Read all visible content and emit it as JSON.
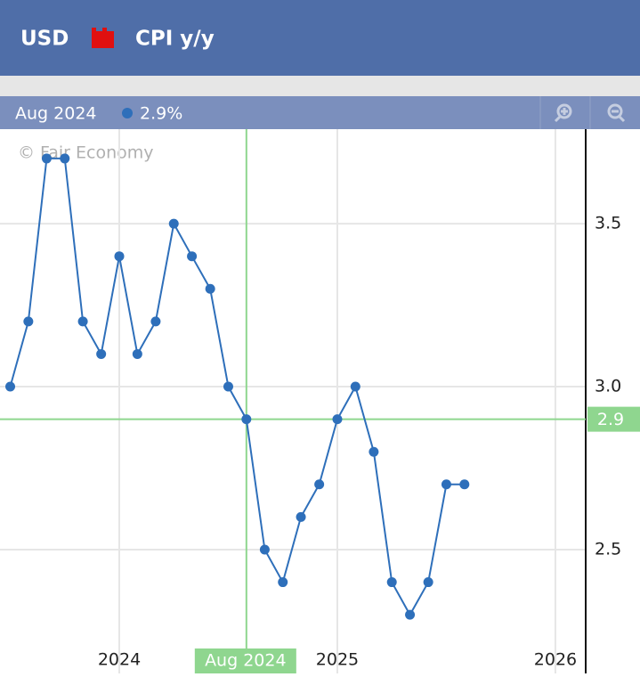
{
  "header": {
    "currency": "USD",
    "indicator": "CPI y/y"
  },
  "watermark": "© Fair Economy",
  "chart_data": {
    "type": "line",
    "x": [
      2023.5,
      2023.583,
      2023.667,
      2023.75,
      2023.833,
      2023.917,
      2024,
      2024.083,
      2024.167,
      2024.25,
      2024.333,
      2024.417,
      2024.5,
      2024.583,
      2024.667,
      2024.75,
      2024.833,
      2024.917,
      2025,
      2025.083,
      2025.167,
      2025.25,
      2025.333,
      2025.417,
      2025.5,
      2025.583
    ],
    "values": [
      3.0,
      3.2,
      3.7,
      3.7,
      3.2,
      3.1,
      3.4,
      3.1,
      3.2,
      3.5,
      3.4,
      3.3,
      3.0,
      2.9,
      2.5,
      2.4,
      2.6,
      2.7,
      2.9,
      3.0,
      2.8,
      2.4,
      2.3,
      2.4,
      2.7,
      2.7
    ],
    "color": "#2e6fba",
    "xlim": [
      2023.453,
      2026.139
    ],
    "xticks": [
      2024,
      2025,
      2026
    ],
    "ylim": [
      2.12,
      3.79
    ],
    "yticks": [
      {
        "value": 2.5,
        "label": "2.5"
      },
      {
        "value": 3.0,
        "label": "3.0"
      },
      {
        "value": 3.5,
        "label": "3.5"
      }
    ],
    "grid": true,
    "crosshair": {
      "x": 2024.583,
      "label": "Aug 2024",
      "value": 2.9,
      "value_label": "2.9%"
    }
  }
}
